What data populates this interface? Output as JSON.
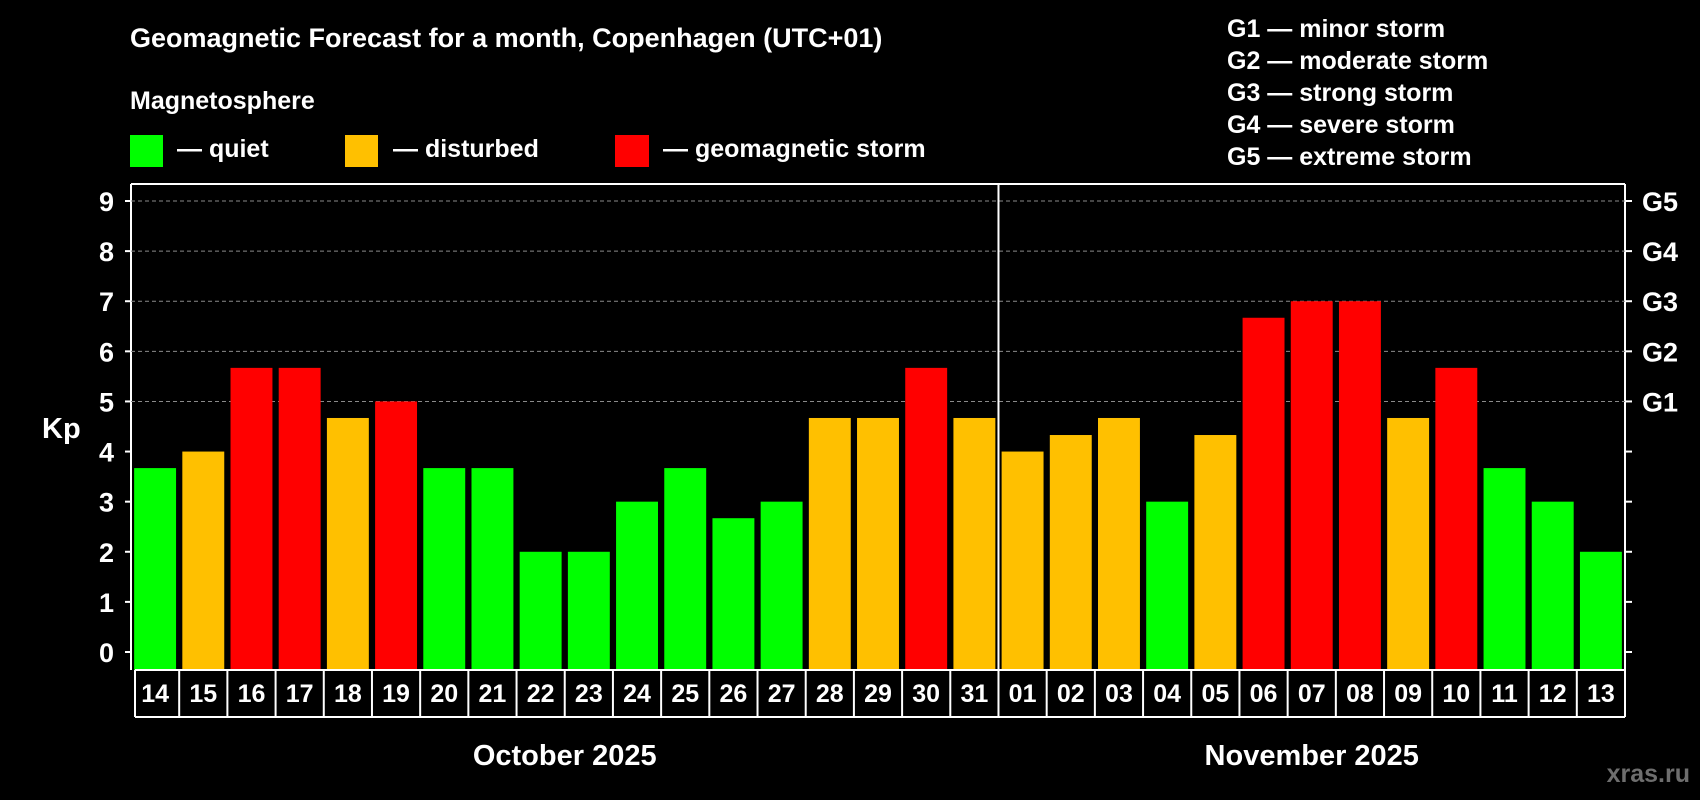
{
  "colors": {
    "quiet": "#00ff00",
    "disturbed": "#ffc000",
    "storm": "#ff0000"
  },
  "chart_data": {
    "type": "bar",
    "title": "Geomagnetic Forecast for a month, Copenhagen (UTC+01)",
    "legend_heading": "Magnetosphere",
    "legend": [
      {
        "key": "quiet",
        "label": "— quiet"
      },
      {
        "key": "disturbed",
        "label": "— disturbed"
      },
      {
        "key": "storm",
        "label": "— geomagnetic storm"
      }
    ],
    "g_scale": [
      "G1 — minor storm",
      "G2 — moderate storm",
      "G3 — strong storm",
      "G4 — severe storm",
      "G5 — extreme storm"
    ],
    "ylabel": "Kp",
    "ylim": [
      0,
      9
    ],
    "yticks": [
      0,
      1,
      2,
      3,
      4,
      5,
      6,
      7,
      8,
      9
    ],
    "g_ticks": [
      {
        "value": 5,
        "label": "G1"
      },
      {
        "value": 6,
        "label": "G2"
      },
      {
        "value": 7,
        "label": "G3"
      },
      {
        "value": 8,
        "label": "G4"
      },
      {
        "value": 9,
        "label": "G5"
      }
    ],
    "categories": [
      "14",
      "15",
      "16",
      "17",
      "18",
      "19",
      "20",
      "21",
      "22",
      "23",
      "24",
      "25",
      "26",
      "27",
      "28",
      "29",
      "30",
      "31",
      "01",
      "02",
      "03",
      "04",
      "05",
      "06",
      "07",
      "08",
      "09",
      "10",
      "11",
      "12",
      "13"
    ],
    "values": [
      3.67,
      4,
      5.67,
      5.67,
      4.67,
      5,
      3.67,
      3.67,
      2,
      2,
      3,
      3.67,
      2.67,
      3,
      4.67,
      4.67,
      5.67,
      4.67,
      4,
      4.33,
      4.67,
      3,
      4.33,
      6.67,
      7,
      7,
      4.67,
      5.67,
      3.67,
      3,
      2
    ],
    "levels": [
      "quiet",
      "disturbed",
      "storm",
      "storm",
      "disturbed",
      "storm",
      "quiet",
      "quiet",
      "quiet",
      "quiet",
      "quiet",
      "quiet",
      "quiet",
      "quiet",
      "disturbed",
      "disturbed",
      "storm",
      "disturbed",
      "disturbed",
      "disturbed",
      "disturbed",
      "quiet",
      "disturbed",
      "storm",
      "storm",
      "storm",
      "disturbed",
      "storm",
      "quiet",
      "quiet",
      "quiet"
    ],
    "months": [
      {
        "label": "October 2025",
        "count": 18
      },
      {
        "label": "November 2025",
        "count": 13
      }
    ],
    "grid": true
  },
  "watermark": "xras.ru"
}
